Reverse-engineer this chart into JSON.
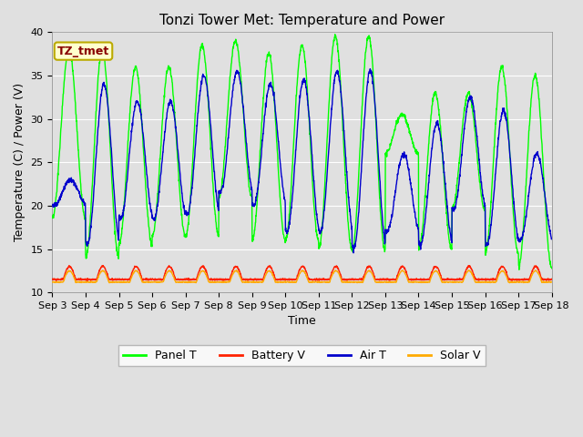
{
  "title": "Tonzi Tower Met: Temperature and Power",
  "xlabel": "Time",
  "ylabel": "Temperature (C) / Power (V)",
  "ylim": [
    10,
    40
  ],
  "xlim_start": 0,
  "xlim_end": 15,
  "annotation_text": "TZ_tmet",
  "annotation_bg": "#ffffcc",
  "annotation_border": "#bbaa00",
  "annotation_text_color": "#880000",
  "plot_bg_color": "#e0e0e0",
  "fig_bg_color": "#e0e0e0",
  "legend_entries": [
    "Panel T",
    "Battery V",
    "Air T",
    "Solar V"
  ],
  "legend_colors": [
    "#00ff00",
    "#ff2200",
    "#0000cc",
    "#ffaa00"
  ],
  "panel_T_peaks": [
    38.0,
    38.0,
    36.0,
    36.0,
    38.5,
    39.0,
    37.5,
    38.5,
    39.5,
    39.5,
    30.5,
    33.0,
    33.0,
    36.0,
    35.0
  ],
  "panel_T_troughs": [
    18.5,
    14.0,
    15.5,
    16.5,
    16.5,
    21.0,
    16.0,
    16.0,
    15.0,
    14.8,
    26.0,
    15.0,
    19.5,
    14.5,
    13.0
  ],
  "air_T_peaks": [
    23.0,
    34.0,
    32.0,
    32.0,
    35.0,
    35.5,
    34.0,
    34.5,
    35.5,
    35.5,
    26.0,
    29.5,
    32.5,
    31.0,
    26.0
  ],
  "air_T_troughs": [
    20.0,
    15.5,
    18.5,
    18.5,
    19.0,
    21.5,
    20.0,
    17.0,
    17.0,
    15.0,
    17.0,
    15.5,
    19.5,
    15.5,
    16.0
  ],
  "batt_base": 11.5,
  "batt_spike": 13.0,
  "solar_base": 11.2,
  "solar_spike": 12.5,
  "xtick_labels": [
    "Sep 3",
    "Sep 4",
    "Sep 5",
    "Sep 6",
    "Sep 7",
    "Sep 8",
    "Sep 9",
    "Sep 10",
    "Sep 11",
    "Sep 12",
    "Sep 13",
    "Sep 14",
    "Sep 15",
    "Sep 16",
    "Sep 17",
    "Sep 18"
  ],
  "ytick_vals": [
    10,
    15,
    20,
    25,
    30,
    35,
    40
  ],
  "grid_color": "#ffffff",
  "title_fontsize": 11,
  "label_fontsize": 9,
  "tick_fontsize": 8,
  "legend_fontsize": 9,
  "line_width": 1.0
}
